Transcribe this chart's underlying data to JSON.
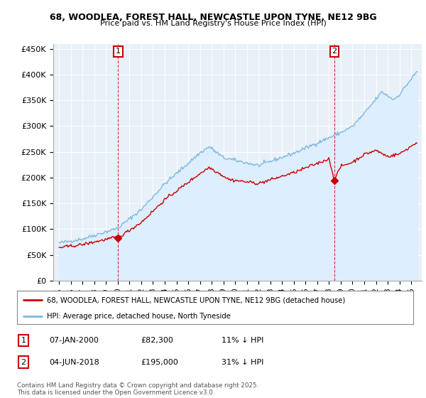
{
  "title_line1": "68, WOODLEA, FOREST HALL, NEWCASTLE UPON TYNE, NE12 9BG",
  "title_line2": "Price paid vs. HM Land Registry's House Price Index (HPI)",
  "ylim": [
    0,
    460000
  ],
  "yticks": [
    0,
    50000,
    100000,
    150000,
    200000,
    250000,
    300000,
    350000,
    400000,
    450000
  ],
  "ytick_labels": [
    "£0",
    "£50K",
    "£100K",
    "£150K",
    "£200K",
    "£250K",
    "£300K",
    "£350K",
    "£400K",
    "£450K"
  ],
  "hpi_color": "#7fb8e0",
  "hpi_fill_color": "#ddeeff",
  "price_color": "#cc0000",
  "transaction1": {
    "date_num": 2000.03,
    "price": 82300,
    "label": "1",
    "date_str": "07-JAN-2000",
    "price_str": "£82,300",
    "note": "11% ↓ HPI"
  },
  "transaction2": {
    "date_num": 2018.46,
    "price": 195000,
    "label": "2",
    "date_str": "04-JUN-2018",
    "price_str": "£195,000",
    "note": "31% ↓ HPI"
  },
  "legend_line1": "68, WOODLEA, FOREST HALL, NEWCASTLE UPON TYNE, NE12 9BG (detached house)",
  "legend_line2": "HPI: Average price, detached house, North Tyneside",
  "footnote": "Contains HM Land Registry data © Crown copyright and database right 2025.\nThis data is licensed under the Open Government Licence v3.0.",
  "background_color": "#ffffff",
  "plot_bg_color": "#e8f0f8",
  "grid_color": "#ffffff"
}
